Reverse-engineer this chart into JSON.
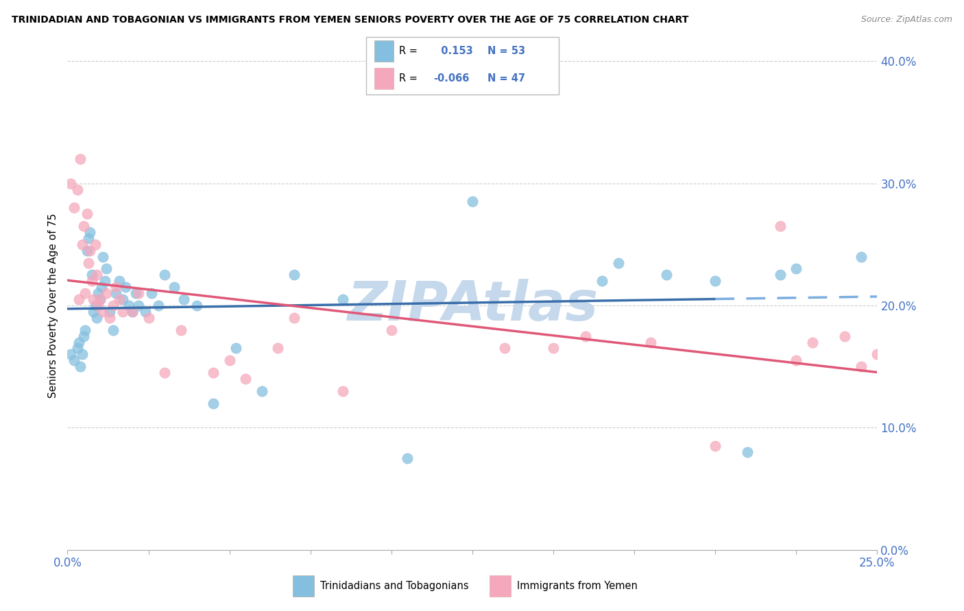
{
  "title": "TRINIDADIAN AND TOBAGONIAN VS IMMIGRANTS FROM YEMEN SENIORS POVERTY OVER THE AGE OF 75 CORRELATION CHART",
  "source": "Source: ZipAtlas.com",
  "ylabel": "Seniors Poverty Over the Age of 75",
  "xlim": [
    0.0,
    25.0
  ],
  "ylim": [
    0.0,
    40.0
  ],
  "yticks": [
    0.0,
    10.0,
    20.0,
    30.0,
    40.0
  ],
  "xticks": [
    0.0,
    2.5,
    5.0,
    7.5,
    10.0,
    12.5,
    15.0,
    17.5,
    20.0,
    22.5,
    25.0
  ],
  "blue_R": 0.153,
  "blue_N": 53,
  "pink_R": -0.066,
  "pink_N": 47,
  "blue_color": "#85bfe0",
  "pink_color": "#f5a8bc",
  "blue_line_color": "#3a6eaa",
  "pink_line_color": "#e05878",
  "blue_dash_color": "#7aade0",
  "watermark": "ZIPAtlas",
  "watermark_color": "#c5d8ec",
  "blue_scatter_x": [
    0.1,
    0.2,
    0.3,
    0.35,
    0.4,
    0.45,
    0.5,
    0.55,
    0.6,
    0.65,
    0.7,
    0.75,
    0.8,
    0.85,
    0.9,
    0.95,
    1.0,
    1.05,
    1.1,
    1.15,
    1.2,
    1.3,
    1.4,
    1.5,
    1.6,
    1.7,
    1.8,
    1.9,
    2.0,
    2.1,
    2.2,
    2.4,
    2.6,
    2.8,
    3.0,
    3.3,
    3.6,
    4.0,
    4.5,
    5.2,
    6.0,
    7.0,
    8.5,
    10.5,
    12.5,
    16.5,
    17.0,
    18.5,
    20.0,
    21.0,
    22.0,
    22.5,
    24.5
  ],
  "blue_scatter_y": [
    16.0,
    15.5,
    16.5,
    17.0,
    15.0,
    16.0,
    17.5,
    18.0,
    24.5,
    25.5,
    26.0,
    22.5,
    19.5,
    20.0,
    19.0,
    21.0,
    20.5,
    21.5,
    24.0,
    22.0,
    23.0,
    19.5,
    18.0,
    21.0,
    22.0,
    20.5,
    21.5,
    20.0,
    19.5,
    21.0,
    20.0,
    19.5,
    21.0,
    20.0,
    22.5,
    21.5,
    20.5,
    20.0,
    12.0,
    16.5,
    13.0,
    22.5,
    20.5,
    7.5,
    28.5,
    22.0,
    23.5,
    22.5,
    22.0,
    8.0,
    22.5,
    23.0,
    24.0
  ],
  "pink_scatter_x": [
    0.1,
    0.2,
    0.3,
    0.35,
    0.4,
    0.45,
    0.5,
    0.55,
    0.6,
    0.65,
    0.7,
    0.75,
    0.8,
    0.85,
    0.9,
    0.95,
    1.0,
    1.1,
    1.2,
    1.3,
    1.4,
    1.5,
    1.6,
    1.7,
    2.0,
    2.2,
    2.5,
    3.0,
    3.5,
    4.5,
    5.0,
    5.5,
    6.5,
    7.0,
    8.5,
    10.0,
    13.5,
    15.0,
    16.0,
    18.0,
    20.0,
    22.0,
    22.5,
    23.0,
    24.0,
    24.5,
    25.0
  ],
  "pink_scatter_y": [
    30.0,
    28.0,
    29.5,
    20.5,
    32.0,
    25.0,
    26.5,
    21.0,
    27.5,
    23.5,
    24.5,
    22.0,
    20.5,
    25.0,
    22.5,
    20.0,
    20.5,
    19.5,
    21.0,
    19.0,
    20.0,
    21.5,
    20.5,
    19.5,
    19.5,
    21.0,
    19.0,
    14.5,
    18.0,
    14.5,
    15.5,
    14.0,
    16.5,
    19.0,
    13.0,
    18.0,
    16.5,
    16.5,
    17.5,
    17.0,
    8.5,
    26.5,
    15.5,
    17.0,
    17.5,
    15.0,
    16.0
  ]
}
